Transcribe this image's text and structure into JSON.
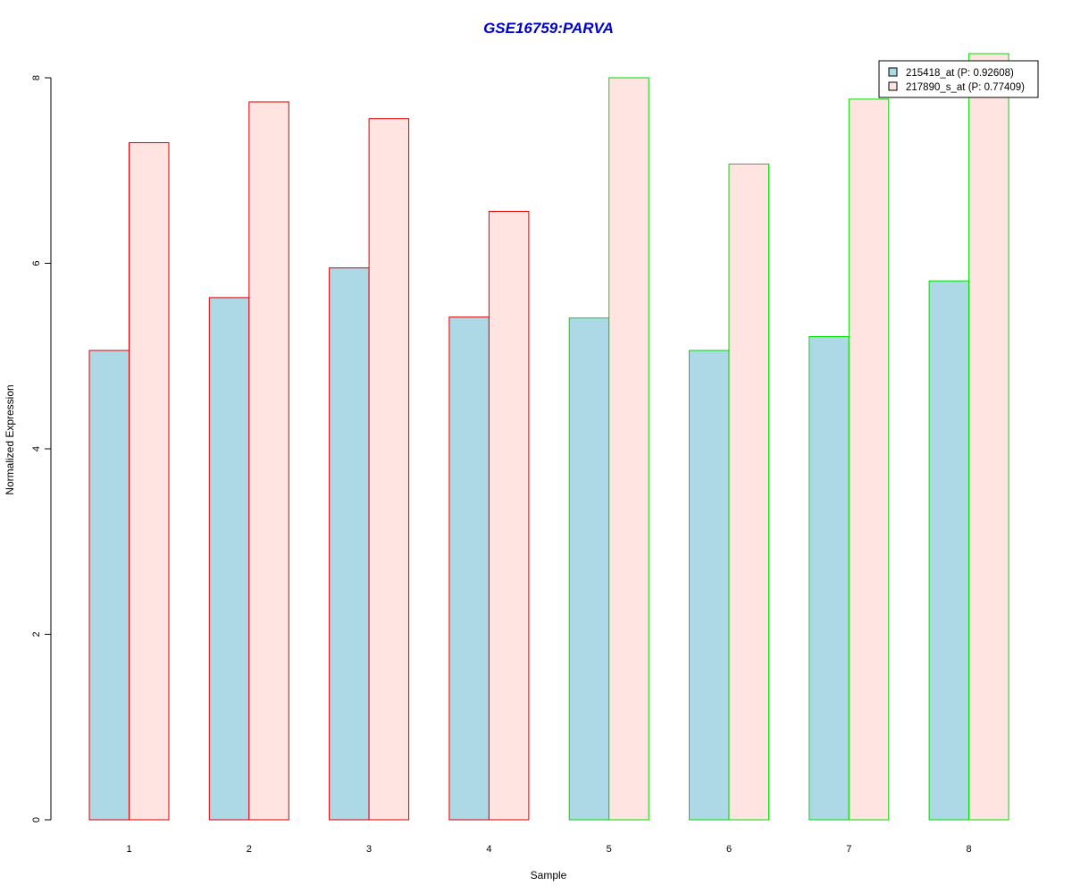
{
  "chart_data": {
    "type": "bar",
    "title": "GSE16759:PARVA",
    "title_color": "#0000cc",
    "xlabel": "Sample",
    "ylabel": "Normalized Expression",
    "categories": [
      "1",
      "2",
      "3",
      "4",
      "5",
      "6",
      "7",
      "8"
    ],
    "ylim": [
      0,
      8
    ],
    "yticks": [
      0,
      2,
      4,
      6,
      8
    ],
    "series": [
      {
        "name": "215418_at (P: 0.92608)",
        "fill": "#add8e6",
        "values": [
          5.06,
          5.63,
          5.95,
          5.42,
          5.41,
          5.06,
          5.21,
          5.81
        ]
      },
      {
        "name": "217890_s_at (P: 0.77409)",
        "fill": "#ffe4e1",
        "values": [
          7.3,
          7.74,
          7.56,
          6.56,
          8.0,
          7.07,
          7.77,
          8.26
        ]
      }
    ],
    "group_border_colors": [
      "#dd0000",
      "#dd0000",
      "#dd0000",
      "#dd0000",
      "#00dd00",
      "#00dd00",
      "#00dd00",
      "#00dd00"
    ],
    "legend_position": "top-right",
    "grid": false
  }
}
